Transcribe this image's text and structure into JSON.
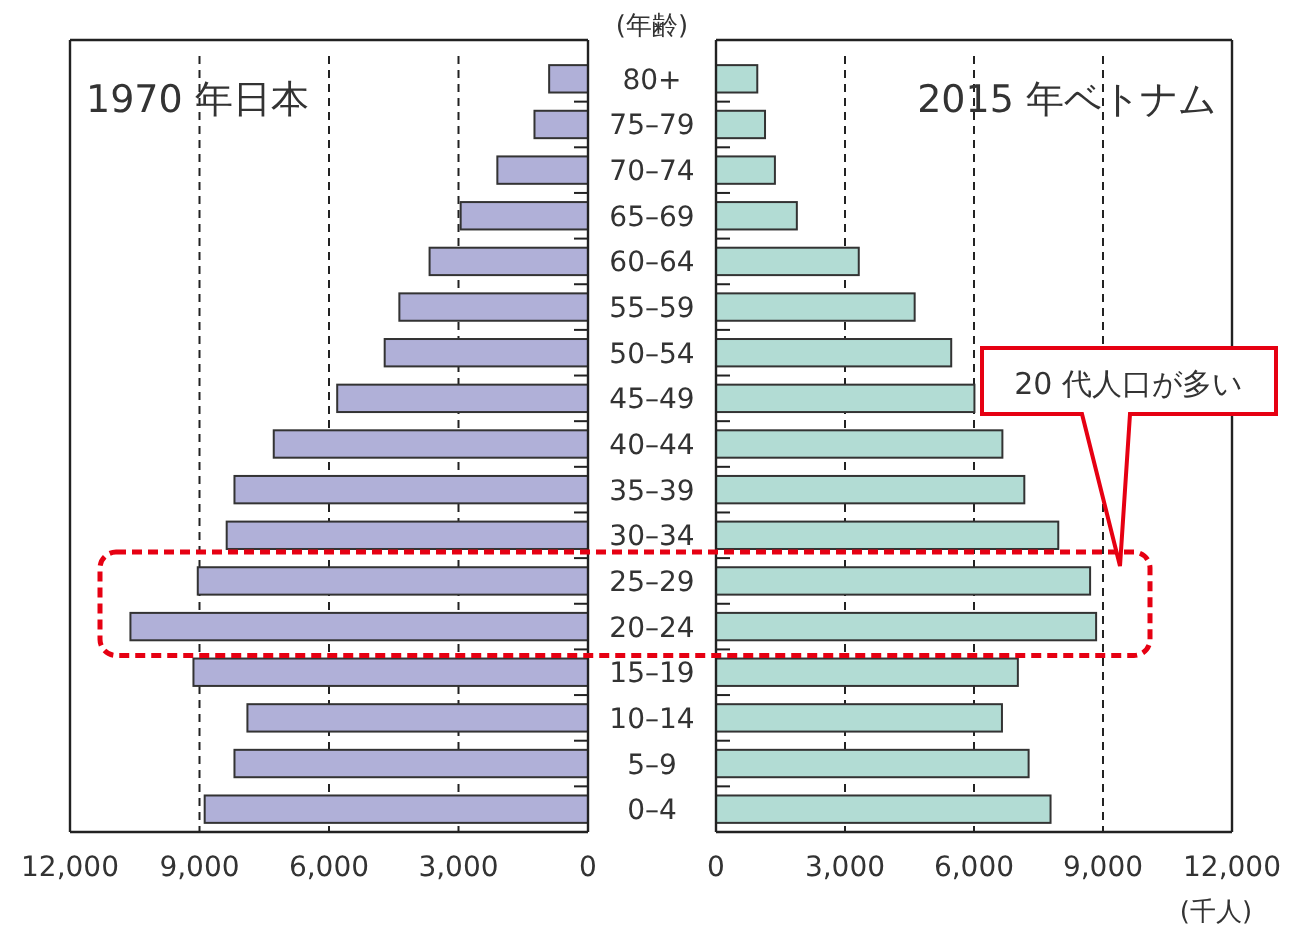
{
  "chart_data": [
    {
      "type": "bar",
      "orientation": "horizontal",
      "title": "1970 年日本",
      "ylabel": "(年齢)",
      "categories": [
        "80+",
        "75–79",
        "70–74",
        "65–69",
        "60–64",
        "55–59",
        "50–54",
        "45–49",
        "40–44",
        "35–39",
        "30–34",
        "25–29",
        "20–24",
        "15–19",
        "10–14",
        "5–9",
        "0–4"
      ],
      "series": [
        {
          "color": "#b0b0d8",
          "values": [
            900,
            1240,
            2100,
            2950,
            3670,
            4370,
            4710,
            5810,
            7280,
            8190,
            8370,
            9040,
            10600,
            9140,
            7890,
            8190,
            8880
          ]
        }
      ],
      "xlim": [
        12000,
        0
      ],
      "xticks": [
        {
          "value": 12000,
          "label": "12,000"
        },
        {
          "value": 9000,
          "label": "9,000"
        },
        {
          "value": 6000,
          "label": "6,000"
        },
        {
          "value": 3000,
          "label": "3,000"
        },
        0
      ],
      "grid": "x"
    },
    {
      "type": "bar",
      "orientation": "horizontal",
      "title": "2015 年ベトナム",
      "xlabel": "(千人)",
      "categories": [
        null,
        null,
        null,
        null,
        null,
        null,
        null,
        null,
        null,
        null,
        null,
        null,
        null,
        null,
        null,
        null,
        null
      ],
      "series": [
        {
          "color": "#b2dcd4",
          "values": [
            960,
            1140,
            1370,
            1880,
            3320,
            4620,
            5470,
            6010,
            6660,
            7170,
            7960,
            8700,
            8840,
            7020,
            6650,
            7270,
            7780
          ]
        }
      ],
      "xlim": [
        0,
        12000
      ],
      "xticks": [
        0,
        {
          "value": 3000,
          "label": "3,000"
        },
        {
          "value": 6000,
          "label": "6,000"
        },
        {
          "value": 9000,
          "label": "9,000"
        },
        {
          "value": 12000,
          "label": "12,000"
        }
      ],
      "grid": "x",
      "annotations": [
        "20 代人口が多い"
      ]
    }
  ]
}
